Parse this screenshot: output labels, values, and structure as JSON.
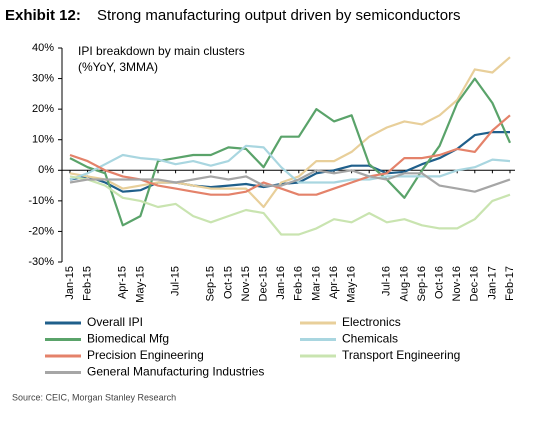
{
  "chart_data": {
    "type": "line",
    "title_label": "Exhibit 12:",
    "title": "Strong manufacturing output driven by semiconductors",
    "subtitle": [
      "IPI breakdown by main clusters",
      "(%YoY, 3MMA)"
    ],
    "source": "Source: CEIC, Morgan Stanley Research",
    "categories": [
      "Jan-15",
      "Feb-15",
      null,
      "Apr-15",
      "May-15",
      null,
      "Jul-15",
      null,
      "Sep-15",
      "Oct-15",
      "Nov-15",
      "Dec-15",
      "Jan-16",
      "Feb-16",
      "Mar-16",
      "Apr-16",
      "May-16",
      null,
      "Jul-16",
      "Aug-16",
      "Sep-16",
      "Oct-16",
      "Nov-16",
      "Dec-16",
      "Jan-17",
      "Feb-17"
    ],
    "ylim": [
      -30,
      40
    ],
    "yticks": [
      {
        "value": 40,
        "label": "40%"
      },
      {
        "value": 30,
        "label": "30%"
      },
      {
        "value": 20,
        "label": "20%"
      },
      {
        "value": 10,
        "label": "10%"
      },
      {
        "value": 0,
        "label": "0%"
      },
      {
        "value": -10,
        "label": "-10%"
      },
      {
        "value": -20,
        "label": "-20%"
      },
      {
        "value": -30,
        "label": "-30%"
      }
    ],
    "grid": false,
    "series": [
      {
        "name": "Overall IPI",
        "color": "#1f5f8b",
        "values": [
          -3,
          -2,
          -4,
          -7,
          -6.5,
          -4,
          -4,
          -5,
          -5.5,
          -5,
          -4.5,
          -5.5,
          -4.5,
          -4,
          -1,
          0,
          1.5,
          1.5,
          -1,
          -0.5,
          2,
          4,
          7,
          11.5,
          12.5,
          12.5
        ]
      },
      {
        "name": "Electronics",
        "color": "#e8cf9a",
        "values": [
          -1,
          -2,
          -3,
          -6,
          -5,
          -4,
          -4,
          -5,
          -6,
          -6,
          -6,
          -12,
          -4,
          -2,
          3,
          3,
          6,
          11,
          14,
          16,
          15,
          18,
          23,
          33,
          32,
          37
        ]
      },
      {
        "name": "Biomedical Mfg",
        "color": "#5aa36a",
        "values": [
          4,
          1,
          -1,
          -18,
          -15,
          3,
          4,
          5,
          5,
          7.5,
          7,
          1,
          11,
          11,
          20,
          16,
          18,
          2,
          -3,
          -9,
          0,
          8,
          22,
          30,
          22,
          9
        ]
      },
      {
        "name": "Chemicals",
        "color": "#a9d6e0",
        "values": [
          -3,
          -1,
          2,
          5,
          4,
          3.5,
          2,
          3,
          1.5,
          3,
          8,
          7.5,
          1,
          -4,
          -4,
          -4,
          -3,
          -3,
          -2,
          -2,
          -2,
          -2,
          0,
          1,
          3.5,
          3
        ]
      },
      {
        "name": "Precision Engineering",
        "color": "#e4826a",
        "values": [
          5,
          3,
          0,
          -2,
          -3,
          -5,
          -6,
          -7,
          -8,
          -8,
          -7,
          -4,
          -6,
          -8,
          -8,
          -6,
          -4,
          -2,
          -1,
          4,
          4,
          5,
          7,
          6,
          13,
          18
        ]
      },
      {
        "name": "Transport Engineering",
        "color": "#c9e4b0",
        "values": [
          -2,
          -3,
          -5,
          -9,
          -10,
          -12,
          -11,
          -15,
          -17,
          -15,
          -13,
          -14,
          -21,
          -21,
          -19,
          -16,
          -17,
          -14,
          -17,
          -16,
          -18,
          -19,
          -19,
          -16,
          -10,
          -8
        ]
      },
      {
        "name": "General Manufacturing Industries",
        "color": "#a6a6a6",
        "values": [
          -4,
          -3,
          -3,
          -3,
          -3,
          -3,
          -4,
          -3,
          -2,
          -3,
          -2,
          -5,
          -5,
          -3,
          0,
          -1,
          0,
          -2,
          -3,
          -1,
          -1,
          -5,
          -6,
          -7,
          -5,
          -3
        ]
      }
    ]
  }
}
